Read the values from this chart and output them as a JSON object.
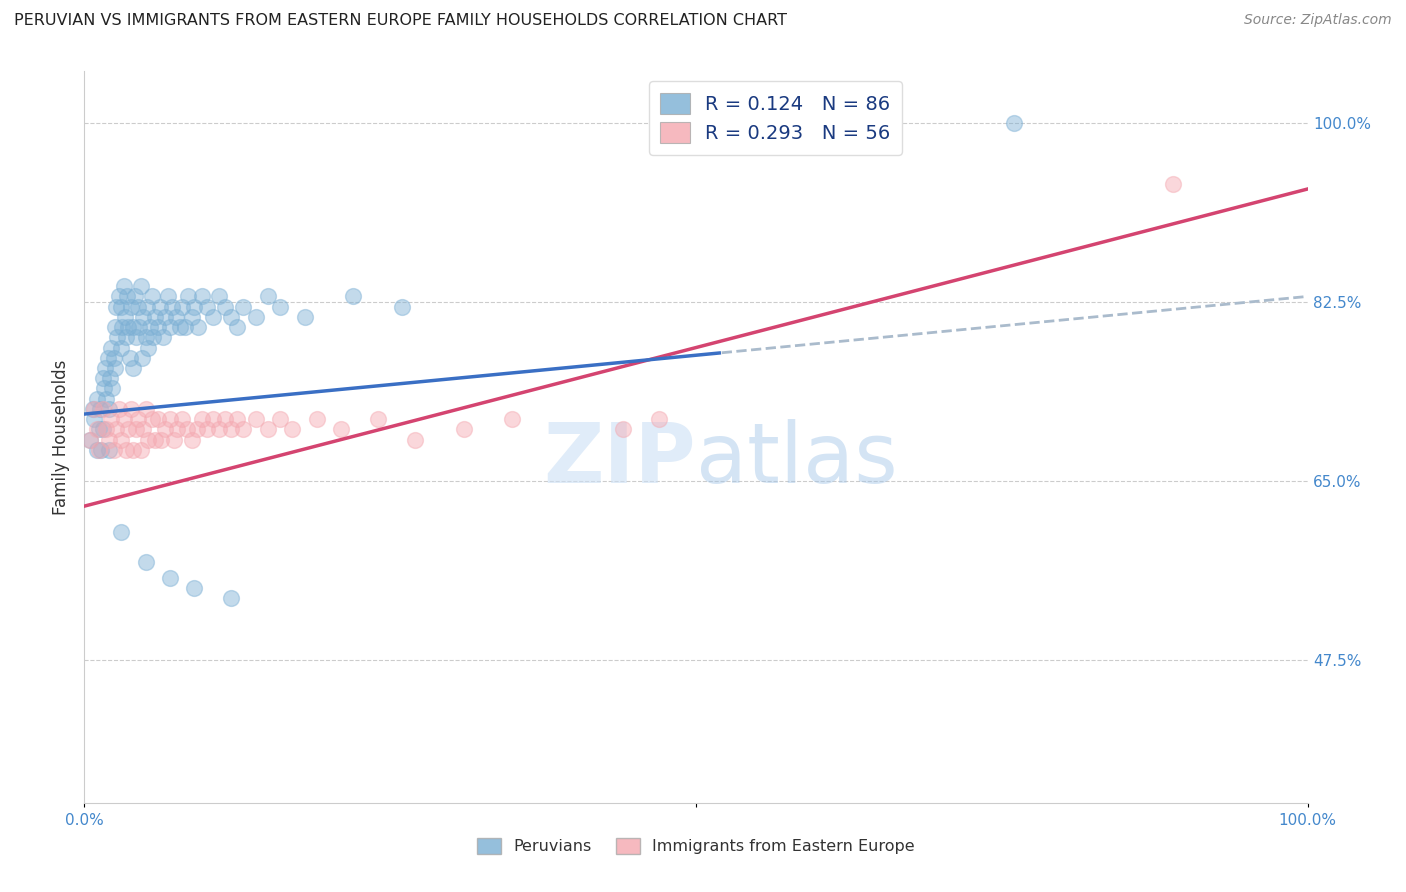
{
  "title": "PERUVIAN VS IMMIGRANTS FROM EASTERN EUROPE FAMILY HOUSEHOLDS CORRELATION CHART",
  "source": "Source: ZipAtlas.com",
  "ylabel": "Family Households",
  "xlim": [
    0.0,
    1.0
  ],
  "ylim": [
    0.335,
    1.05
  ],
  "yticks": [
    0.475,
    0.65,
    0.825,
    1.0
  ],
  "ytick_labels": [
    "47.5%",
    "65.0%",
    "82.5%",
    "100.0%"
  ],
  "xtick_labels": [
    "0.0%",
    "100.0%"
  ],
  "legend_r1": "R = 0.124",
  "legend_n1": "N = 86",
  "legend_r2": "R = 0.293",
  "legend_n2": "N = 56",
  "blue_color": "#7bafd4",
  "pink_color": "#f4a8b0",
  "blue_line_color": "#3a6fc4",
  "pink_line_color": "#d44470",
  "dashed_line_color": "#aabbcc",
  "blue_line_x_end": 0.52,
  "pink_line_x_end": 1.0,
  "blue_intercept": 0.715,
  "blue_slope": 0.115,
  "pink_intercept": 0.625,
  "pink_slope": 0.31,
  "peruvians_x": [
    0.005,
    0.007,
    0.008,
    0.01,
    0.01,
    0.012,
    0.013,
    0.014,
    0.015,
    0.015,
    0.016,
    0.017,
    0.018,
    0.019,
    0.02,
    0.02,
    0.021,
    0.022,
    0.023,
    0.024,
    0.025,
    0.025,
    0.026,
    0.027,
    0.028,
    0.03,
    0.03,
    0.031,
    0.032,
    0.033,
    0.034,
    0.035,
    0.036,
    0.037,
    0.038,
    0.04,
    0.04,
    0.041,
    0.042,
    0.044,
    0.045,
    0.046,
    0.047,
    0.048,
    0.05,
    0.051,
    0.052,
    0.054,
    0.055,
    0.056,
    0.058,
    0.06,
    0.062,
    0.064,
    0.066,
    0.068,
    0.07,
    0.072,
    0.075,
    0.078,
    0.08,
    0.082,
    0.085,
    0.088,
    0.09,
    0.093,
    0.096,
    0.1,
    0.105,
    0.11,
    0.115,
    0.12,
    0.125,
    0.13,
    0.14,
    0.15,
    0.16,
    0.18,
    0.22,
    0.26,
    0.03,
    0.05,
    0.07,
    0.09,
    0.12,
    0.76
  ],
  "peruvians_y": [
    0.69,
    0.72,
    0.71,
    0.68,
    0.73,
    0.7,
    0.72,
    0.68,
    0.75,
    0.7,
    0.74,
    0.76,
    0.73,
    0.77,
    0.72,
    0.68,
    0.75,
    0.78,
    0.74,
    0.77,
    0.8,
    0.76,
    0.82,
    0.79,
    0.83,
    0.78,
    0.82,
    0.8,
    0.84,
    0.81,
    0.79,
    0.83,
    0.8,
    0.77,
    0.82,
    0.8,
    0.76,
    0.83,
    0.79,
    0.82,
    0.8,
    0.84,
    0.77,
    0.81,
    0.79,
    0.82,
    0.78,
    0.8,
    0.83,
    0.79,
    0.81,
    0.8,
    0.82,
    0.79,
    0.81,
    0.83,
    0.8,
    0.82,
    0.81,
    0.8,
    0.82,
    0.8,
    0.83,
    0.81,
    0.82,
    0.8,
    0.83,
    0.82,
    0.81,
    0.83,
    0.82,
    0.81,
    0.8,
    0.82,
    0.81,
    0.83,
    0.82,
    0.81,
    0.83,
    0.82,
    0.6,
    0.57,
    0.555,
    0.545,
    0.535,
    1.0
  ],
  "eastern_x": [
    0.005,
    0.008,
    0.01,
    0.012,
    0.015,
    0.018,
    0.02,
    0.022,
    0.024,
    0.026,
    0.028,
    0.03,
    0.032,
    0.034,
    0.036,
    0.038,
    0.04,
    0.042,
    0.044,
    0.046,
    0.048,
    0.05,
    0.052,
    0.055,
    0.058,
    0.06,
    0.063,
    0.066,
    0.07,
    0.073,
    0.076,
    0.08,
    0.084,
    0.088,
    0.092,
    0.096,
    0.1,
    0.105,
    0.11,
    0.115,
    0.12,
    0.125,
    0.13,
    0.14,
    0.15,
    0.16,
    0.17,
    0.19,
    0.21,
    0.24,
    0.27,
    0.31,
    0.35,
    0.44,
    0.47,
    0.89
  ],
  "eastern_y": [
    0.69,
    0.72,
    0.7,
    0.68,
    0.72,
    0.7,
    0.69,
    0.71,
    0.68,
    0.7,
    0.72,
    0.69,
    0.71,
    0.68,
    0.7,
    0.72,
    0.68,
    0.7,
    0.71,
    0.68,
    0.7,
    0.72,
    0.69,
    0.71,
    0.69,
    0.71,
    0.69,
    0.7,
    0.71,
    0.69,
    0.7,
    0.71,
    0.7,
    0.69,
    0.7,
    0.71,
    0.7,
    0.71,
    0.7,
    0.71,
    0.7,
    0.71,
    0.7,
    0.71,
    0.7,
    0.71,
    0.7,
    0.71,
    0.7,
    0.71,
    0.69,
    0.7,
    0.71,
    0.7,
    0.71,
    0.94
  ]
}
